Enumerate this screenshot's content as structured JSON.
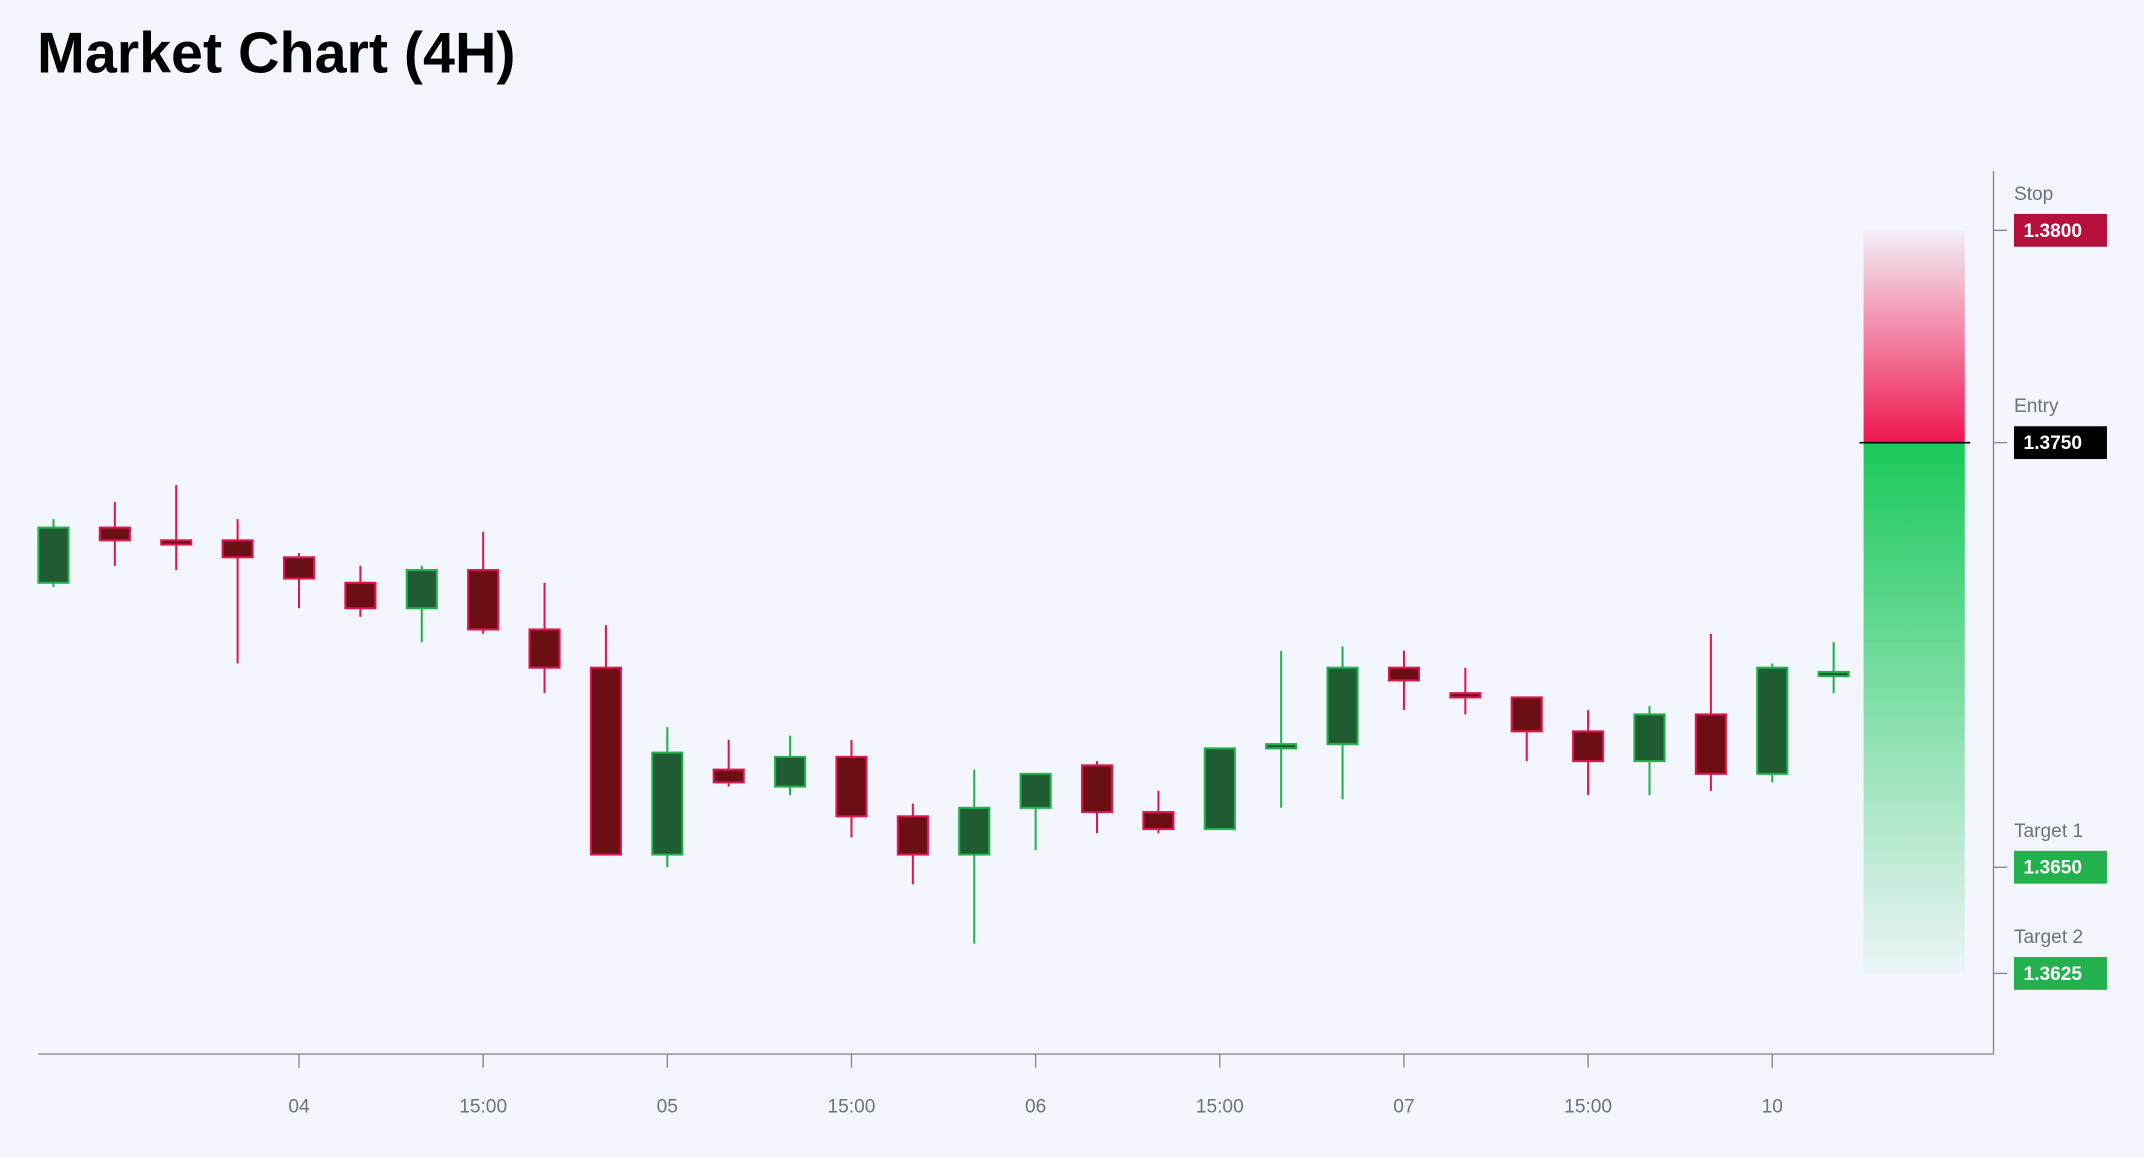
{
  "chart_data": {
    "type": "candlestick",
    "title": "Market Chart (4H)",
    "categories": [
      null,
      null,
      null,
      null,
      "04",
      null,
      null,
      "15:00",
      null,
      null,
      "05",
      null,
      null,
      "15:00",
      null,
      null,
      "06",
      null,
      null,
      "15:00",
      null,
      null,
      "07",
      null,
      null,
      "15:00",
      null,
      null,
      "10",
      null
    ],
    "open": [
      1.3717,
      1.373,
      1.3727,
      1.3727,
      1.3723,
      1.3717,
      1.3711,
      1.372,
      1.3706,
      1.3697,
      1.3653,
      1.3673,
      1.3669,
      1.3676,
      1.3662,
      1.3653,
      1.3664,
      1.3674,
      1.3663,
      1.3659,
      1.3678,
      1.3679,
      1.3697,
      1.3691,
      1.369,
      1.3682,
      1.3675,
      1.3686,
      1.3672,
      1.3695
    ],
    "high": [
      1.3732,
      1.3736,
      1.374,
      1.3732,
      1.3724,
      1.3721,
      1.3721,
      1.3729,
      1.3717,
      1.3707,
      1.3683,
      1.368,
      1.3681,
      1.368,
      1.3665,
      1.3673,
      1.3672,
      1.3675,
      1.3668,
      1.3678,
      1.3701,
      1.3702,
      1.3701,
      1.3697,
      1.369,
      1.3687,
      1.3688,
      1.3705,
      1.3698,
      1.3703
    ],
    "low": [
      1.3716,
      1.3721,
      1.372,
      1.3698,
      1.3711,
      1.3709,
      1.3703,
      1.3705,
      1.3691,
      1.3653,
      1.365,
      1.3669,
      1.3667,
      1.3657,
      1.3646,
      1.3632,
      1.3654,
      1.3658,
      1.3658,
      1.3659,
      1.3664,
      1.3666,
      1.3687,
      1.3686,
      1.3675,
      1.3667,
      1.3667,
      1.3668,
      1.367,
      1.3691
    ],
    "close": [
      1.373,
      1.3727,
      1.3726,
      1.3723,
      1.3718,
      1.3711,
      1.372,
      1.3706,
      1.3697,
      1.3653,
      1.3677,
      1.367,
      1.3676,
      1.3662,
      1.3653,
      1.3664,
      1.3672,
      1.3663,
      1.3659,
      1.3678,
      1.3679,
      1.3697,
      1.3694,
      1.369,
      1.3682,
      1.3675,
      1.3686,
      1.3672,
      1.3697,
      1.3696
    ],
    "up_color": "#22b14c",
    "up_fill": "#1f5c32",
    "down_color": "#e0174f",
    "down_fill": "#6b0f14",
    "ylim": [
      1.3606,
      1.3814
    ],
    "levels": [
      {
        "name": "Stop",
        "value": 1.38,
        "label": "1.3800",
        "color": "#b5103c"
      },
      {
        "name": "Entry",
        "value": 1.375,
        "label": "1.3750",
        "color": "#000000"
      },
      {
        "name": "Target 1",
        "value": 1.365,
        "label": "1.3650",
        "color": "#22b14c"
      },
      {
        "name": "Target 2",
        "value": 1.3625,
        "label": "1.3625",
        "color": "#22b14c"
      }
    ],
    "risk_color": "#f0164f",
    "reward_color": "#1ac95a"
  }
}
